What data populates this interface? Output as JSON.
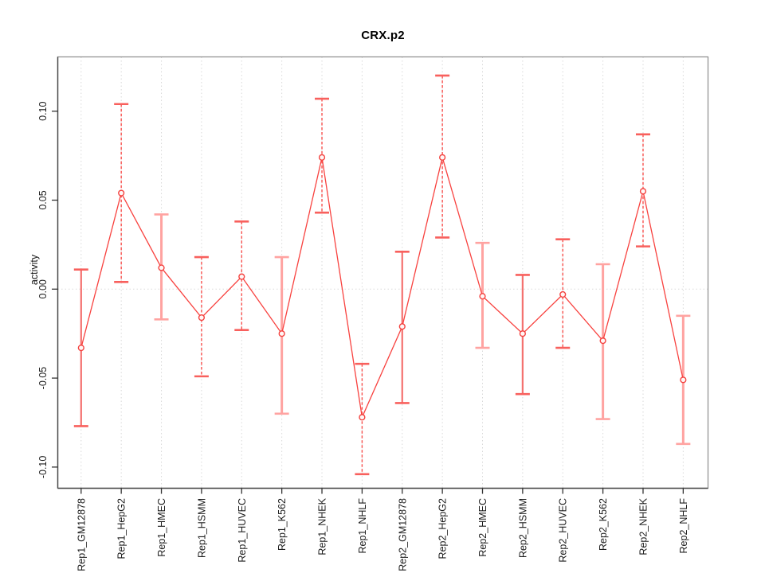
{
  "chart_data": {
    "type": "line",
    "title": "CRX.p2",
    "ylabel": "activity",
    "xlabel": "",
    "ylim": [
      -0.112,
      0.125
    ],
    "yticks": [
      0.1,
      0.05,
      0.0,
      -0.05,
      -0.1
    ],
    "ytick_labels": [
      "0.10",
      "0.05",
      "0.00",
      "-0.05",
      "-0.10"
    ],
    "grid": {
      "vertical_dotted_per_category": true,
      "horizontal_dotted_at_zero": true
    },
    "legend": "none",
    "marker": "open-circle",
    "categories": [
      "Rep1_GM12878",
      "Rep1_HepG2",
      "Rep1_HMEC",
      "Rep1_HSMM",
      "Rep1_HUVEC",
      "Rep1_K562",
      "Rep1_NHEK",
      "Rep1_NHLF",
      "Rep2_GM12878",
      "Rep2_HepG2",
      "Rep2_HMEC",
      "Rep2_HSMM",
      "Rep2_HUVEC",
      "Rep2_K562",
      "Rep2_NHEK",
      "Rep2_NHLF"
    ],
    "series": [
      {
        "name": "activity",
        "values": [
          -0.033,
          0.054,
          0.012,
          -0.016,
          0.007,
          -0.025,
          0.074,
          -0.072,
          -0.021,
          0.074,
          -0.004,
          -0.025,
          -0.003,
          -0.029,
          0.055,
          -0.051
        ],
        "ci_low": [
          -0.077,
          0.004,
          -0.017,
          -0.049,
          -0.023,
          -0.07,
          0.043,
          -0.104,
          -0.064,
          0.029,
          -0.033,
          -0.059,
          -0.033,
          -0.073,
          0.024,
          -0.087
        ],
        "ci_high": [
          0.011,
          0.104,
          0.042,
          0.018,
          0.038,
          0.018,
          0.107,
          -0.042,
          0.021,
          0.12,
          0.026,
          0.008,
          0.028,
          0.014,
          0.087,
          -0.015
        ],
        "bar_styles": [
          "mixed",
          "dashed",
          "pink",
          "dashed",
          "dashed",
          "pink",
          "dashed",
          "dashed",
          "mixed",
          "dashed",
          "pink",
          "mixed",
          "dashed",
          "pink",
          "dashed",
          "pink"
        ]
      }
    ],
    "colors": {
      "line": "#f8423f",
      "marker_stroke": "#f4413e",
      "marker_fill": "#fff7f6",
      "bar_dashed": "#f8504d",
      "bar_pink": "#ffa3a1",
      "bar_mixed": "#f4716f",
      "cap_red": "#f8605d",
      "grid": "#d9d9d9",
      "box": "#8c8c8c",
      "axis": "#474747",
      "tick": "#333333",
      "tick_label": "#1c1c1c"
    }
  }
}
